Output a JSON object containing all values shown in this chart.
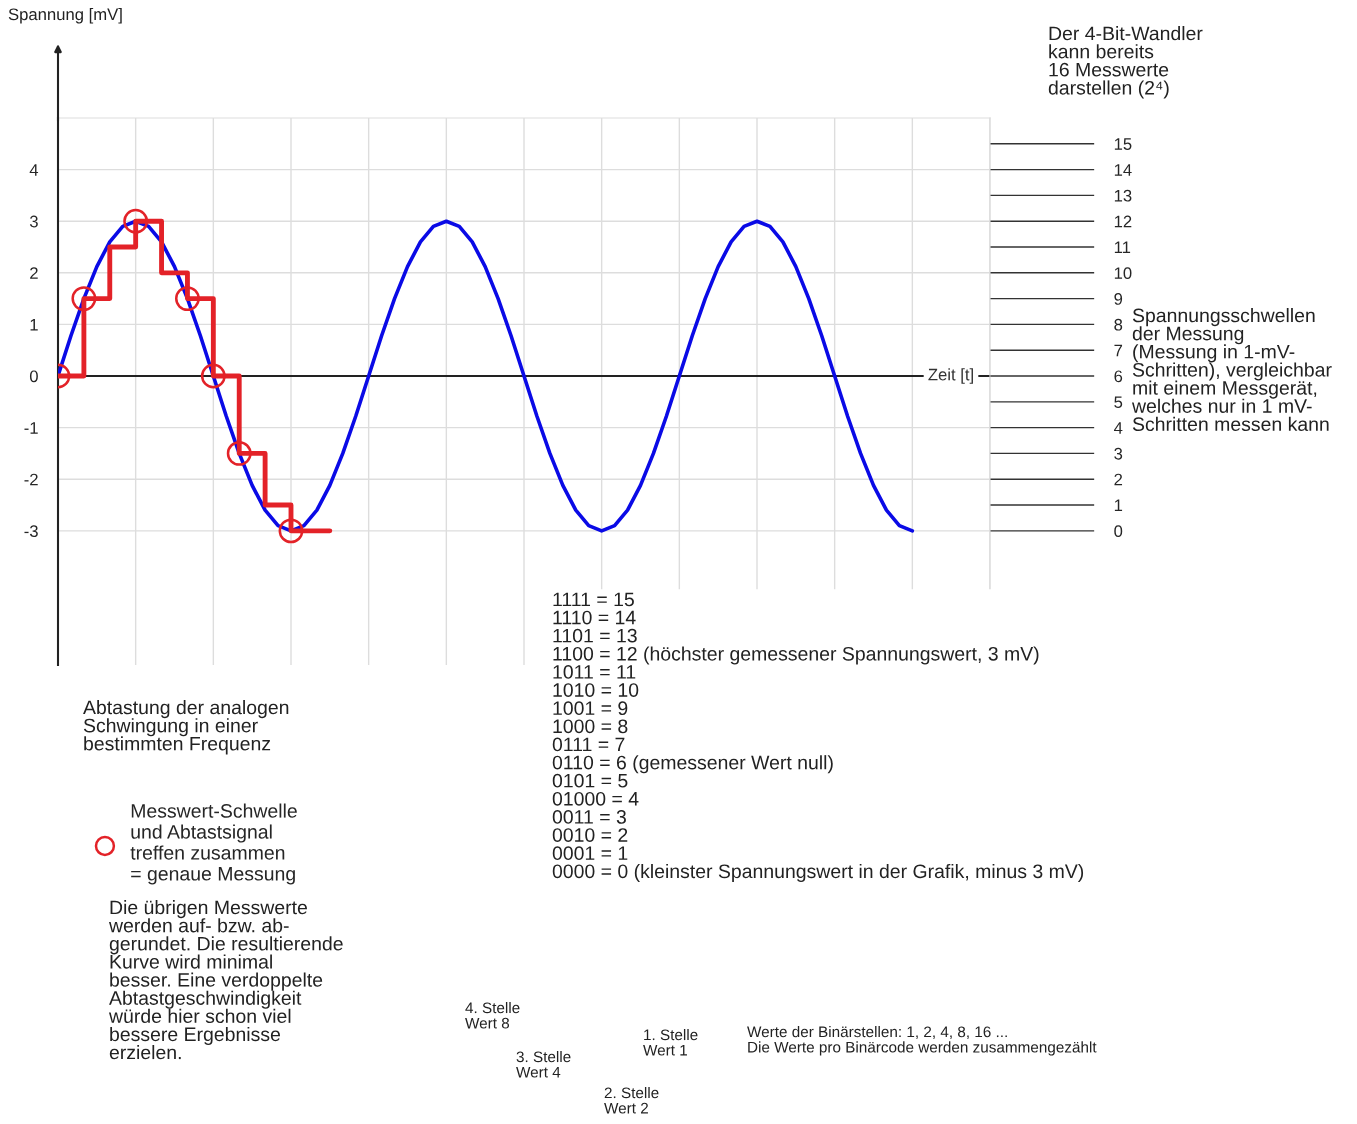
{
  "chart_data": {
    "type": "line",
    "xlabel": "Zeit [t]",
    "categories": [
      null,
      null,
      null,
      null,
      null,
      null,
      null,
      null,
      null,
      null,
      null,
      null,
      null,
      null,
      null,
      null,
      null,
      null,
      null,
      null,
      null,
      null,
      null,
      null,
      null,
      null,
      null,
      null,
      null,
      null,
      null,
      null,
      null,
      null,
      null,
      null,
      null,
      null,
      null,
      null,
      null,
      null,
      null,
      null,
      null,
      null,
      null,
      null,
      null,
      null,
      null,
      null,
      null,
      null,
      null,
      null,
      null,
      null,
      null,
      null,
      null,
      null,
      null,
      null,
      null,
      null,
      null,
      null,
      null,
      null,
      null,
      null,
      null
    ],
    "series": [
      {
        "color": "#0a0ae6",
        "values": [
          0,
          0.78,
          1.5,
          2.12,
          2.6,
          2.9,
          3,
          2.9,
          2.6,
          2.12,
          1.5,
          0.78,
          0,
          -0.78,
          -1.5,
          -2.12,
          -2.6,
          -2.9,
          -3,
          -2.9,
          -2.6,
          -2.12,
          -1.5,
          -0.78,
          0,
          0.78,
          1.5,
          2.12,
          2.6,
          2.9,
          3,
          2.9,
          2.6,
          2.12,
          1.5,
          0.78,
          0,
          -0.78,
          -1.5,
          -2.12,
          -2.6,
          -2.9,
          -3,
          -2.9,
          -2.6,
          -2.12,
          -1.5,
          -0.78,
          0,
          0.78,
          1.5,
          2.12,
          2.6,
          2.9,
          3,
          2.9,
          2.6,
          2.12,
          1.5,
          0.78,
          0,
          -0.78,
          -1.5,
          -2.12,
          -2.6,
          -2.9,
          -3,
          null,
          null,
          null,
          null,
          null,
          null
        ]
      },
      {
        "type": "step",
        "color": "#e32228",
        "values": [
          0,
          0,
          1.5,
          1.5,
          2.5,
          2.5,
          3,
          3,
          2,
          2,
          1.5,
          1.5,
          0,
          0,
          -1.5,
          -1.5,
          -2.5,
          -2.5,
          -3,
          -3,
          -3,
          -3,
          null,
          null,
          null,
          null,
          null,
          null,
          null,
          null,
          null,
          null,
          null,
          null,
          null,
          null,
          null,
          null,
          null,
          null,
          null,
          null,
          null,
          null,
          null,
          null,
          null,
          null,
          null,
          null,
          null,
          null,
          null,
          null,
          null,
          null,
          null,
          null,
          null,
          null,
          null,
          null,
          null,
          null,
          null,
          null,
          null,
          null,
          null,
          null,
          null,
          null,
          null
        ]
      },
      {
        "type": "scatter",
        "marker": "circle",
        "color": "#e32228",
        "name": "Messwert-Schwelle\nund Abtastsignal\ntreffen zusammen\n= genaue Messung",
        "values": [
          0,
          null,
          1.5,
          null,
          null,
          null,
          3,
          null,
          null,
          null,
          1.5,
          null,
          0,
          null,
          -1.5,
          null,
          null,
          null,
          -3,
          null,
          null,
          null,
          null,
          null,
          null,
          null,
          null,
          null,
          null,
          null,
          null,
          null,
          null,
          null,
          null,
          null,
          null,
          null,
          null,
          null,
          null,
          null,
          null,
          null,
          null,
          null,
          null,
          null,
          null,
          null,
          null,
          null,
          null,
          null,
          null,
          null,
          null,
          null,
          null,
          null,
          null,
          null,
          null,
          null,
          null,
          null,
          null,
          null,
          null,
          null,
          null,
          null,
          null
        ]
      }
    ],
    "ylim": [
      -5.6,
      5
    ],
    "yticks": [
      -3,
      -2,
      -1,
      0,
      1,
      2,
      3,
      4
    ],
    "y2lim": [
      -5.2,
      16
    ],
    "y2ticks": [
      0,
      1,
      2,
      3,
      4,
      5,
      6,
      7,
      8,
      9,
      10,
      11,
      12,
      13,
      14,
      15
    ],
    "grid": true,
    "legend": "bottom left",
    "tick_labels": "y",
    "annotations": [
      "Der 4-Bit-Wandler\nkann bereits\n16 Messwerte\ndarstellen (2⁴)",
      "Spannungsschwellen\nder Messung\n(Messung in 1-mV-\nSchritten), vergleichbar\nmit einem Messgerät,\nwelches nur in 1 mV-\nSchritten messen kann",
      "Abtastung der analogen\nSchwingung in einer\nbestimmten Frequenz",
      "Die übrigen Messwerte\nwerden auf- bzw. ab-\ngerundet. Die resultierende\nKurve wird minimal\nbesser. Eine verdoppelte\nAbtastgeschwindigkeit\nwürde hier schon viel\nbessere Ergebnisse\nerzielen.",
      "1111 = 15\n1110 = 14\n1101 = 13\n1100 = 12 (höchster gemessener Spannungswert, 3 mV)\n1011 = 11\n1010 = 10\n1001 = 9\n1000 = 8\n0111 = 7\n0110 = 6 (gemessener Wert null)\n0101 = 5\n01000 = 4\n0011 = 3\n0010 = 2\n0001 = 1\n0000 = 0 (kleinster Spannungswert in der Grafik, minus 3 mV)",
      "4. Stelle\nWert 8",
      "3. Stelle\nWert 4",
      "2. Stelle\nWert 2",
      "1. Stelle\nWert 1",
      "Werte der Binärstellen: 1, 2, 4, 8, 16 ...\nDie Werte pro Binärcode werden zusammengezählt",
      "Spannung [mV]"
    ]
  }
}
